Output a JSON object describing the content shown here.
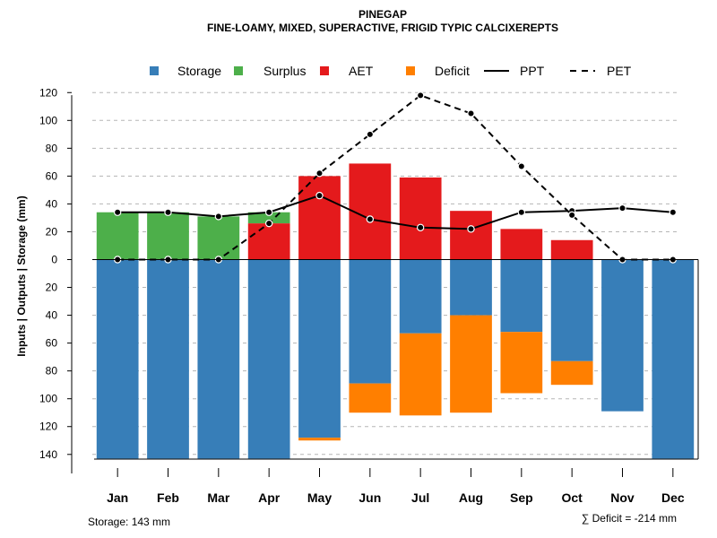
{
  "chart_data": {
    "type": "bar",
    "title": "PINEGAP",
    "subtitle": "FINE-LOAMY, MIXED, SUPERACTIVE, FRIGID TYPIC CALCIXEREPTS",
    "ylabel": "Inputs | Outputs | Storage    (mm)",
    "ylim": [
      -145,
      122
    ],
    "yticks": [
      -140,
      -120,
      -100,
      -80,
      -60,
      -40,
      -20,
      0,
      20,
      40,
      60,
      80,
      100,
      120
    ],
    "ytick_labels": [
      "140",
      "120",
      "100",
      "80",
      "60",
      "40",
      "20",
      "0",
      "20",
      "40",
      "60",
      "80",
      "100",
      "120"
    ],
    "categories": [
      "Jan",
      "Feb",
      "Mar",
      "Apr",
      "May",
      "Jun",
      "Jul",
      "Aug",
      "Sep",
      "Oct",
      "Nov",
      "Dec"
    ],
    "series": [
      {
        "name": "Surplus",
        "kind": "bar",
        "color": "#4daf4a",
        "values": [
          34,
          34,
          31,
          8,
          0,
          0,
          0,
          0,
          0,
          0,
          0,
          0
        ],
        "base": [
          0,
          0,
          0,
          26,
          0,
          0,
          0,
          0,
          0,
          0,
          0,
          0
        ]
      },
      {
        "name": "AET",
        "kind": "bar",
        "color": "#e41a1c",
        "values": [
          0,
          0,
          0,
          26,
          60,
          69,
          59,
          35,
          22,
          14,
          0,
          0
        ],
        "base": [
          0,
          0,
          0,
          0,
          0,
          0,
          0,
          0,
          0,
          0,
          0,
          0
        ]
      },
      {
        "name": "Storage",
        "kind": "bar",
        "color": "#377eb8",
        "values": [
          -143,
          -143,
          -143,
          -143,
          -128,
          -89,
          -53,
          -40,
          -52,
          -73,
          -109,
          -143
        ],
        "base": [
          0,
          0,
          0,
          0,
          0,
          0,
          0,
          0,
          0,
          0,
          0,
          0
        ]
      },
      {
        "name": "Deficit",
        "kind": "bar",
        "color": "#ff7f00",
        "values": [
          0,
          0,
          0,
          0,
          -2,
          -21,
          -59,
          -70,
          -44,
          -17,
          0,
          0
        ],
        "base": [
          0,
          0,
          0,
          0,
          -128,
          -89,
          -53,
          -40,
          -52,
          -73,
          0,
          0
        ]
      },
      {
        "name": "PPT",
        "kind": "line",
        "color": "#000000",
        "dash": "solid",
        "values": [
          34,
          34,
          31,
          34,
          46,
          29,
          23,
          22,
          34,
          35,
          37,
          34
        ]
      },
      {
        "name": "PET",
        "kind": "line",
        "color": "#000000",
        "dash": "dashed",
        "values": [
          0,
          0,
          0,
          26,
          62,
          90,
          118,
          105,
          67,
          32,
          0,
          0
        ]
      }
    ],
    "legend": {
      "position": "top",
      "order": [
        "Storage",
        "Surplus",
        "AET",
        "Deficit",
        "PPT",
        "PET"
      ]
    },
    "grid": true,
    "annotations": {
      "storage": "Storage: 143 mm",
      "deficit": "∑ Deficit = -214 mm"
    }
  }
}
